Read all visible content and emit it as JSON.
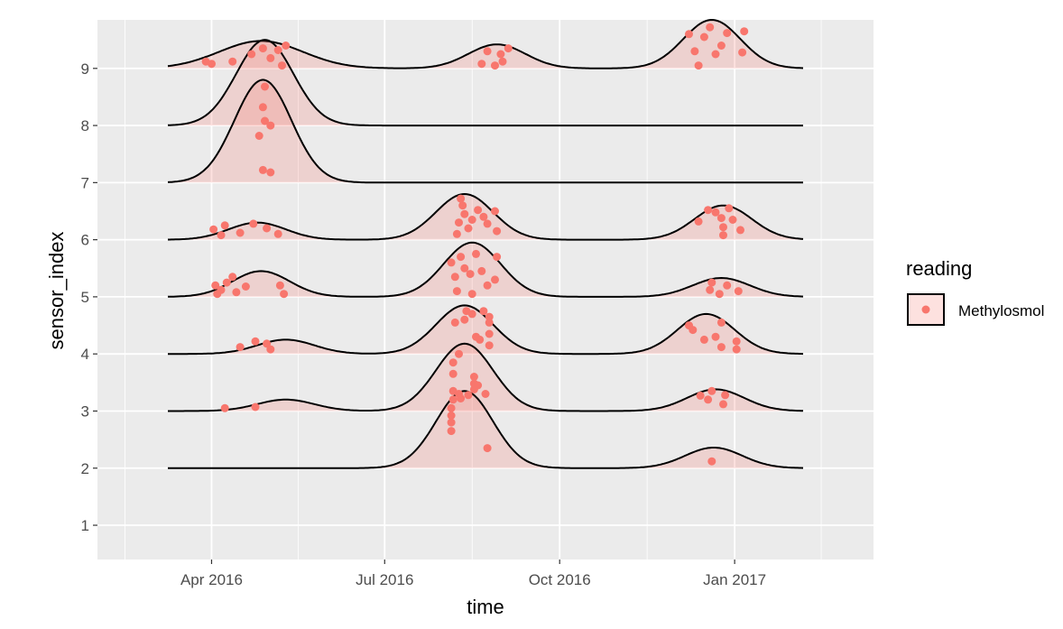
{
  "chart_data": {
    "type": "ridgeline-density-with-jittered-points",
    "xlabel": "time",
    "ylabel": "sensor_index",
    "x_ticks": [
      "Apr 2016",
      "Jul 2016",
      "Oct 2016",
      "Jan 2017"
    ],
    "x_tick_dates": [
      "2016-04-01",
      "2016-07-01",
      "2016-10-01",
      "2017-01-01"
    ],
    "x_range": [
      "2016-02-01",
      "2017-03-15"
    ],
    "y_ticks": [
      1,
      2,
      3,
      4,
      5,
      6,
      7,
      8,
      9
    ],
    "ylim": [
      0.4,
      9.85
    ],
    "grid": true,
    "legend": {
      "title": "reading",
      "placement": "right",
      "entries": [
        "Methylosmol"
      ]
    },
    "colors": {
      "fill": "#f8766d",
      "line": "#000000",
      "panel": "#ebebeb",
      "grid": "#ffffff"
    },
    "ridges": [
      {
        "sensor_index": 2,
        "bumps": [
          {
            "date": "2016-08-12",
            "height": 1.35,
            "sd_days": 15
          },
          {
            "date": "2016-12-21",
            "height": 0.36,
            "sd_days": 15
          }
        ],
        "points": [
          {
            "date": "2016-08-05",
            "y": 2.65
          },
          {
            "date": "2016-08-05",
            "y": 2.8
          },
          {
            "date": "2016-08-05",
            "y": 2.92
          },
          {
            "date": "2016-08-05",
            "y": 3.05
          },
          {
            "date": "2016-08-06",
            "y": 3.2
          },
          {
            "date": "2016-08-09",
            "y": 3.3
          },
          {
            "date": "2016-08-24",
            "y": 2.35
          },
          {
            "date": "2016-12-20",
            "y": 2.12
          }
        ]
      },
      {
        "sensor_index": 3,
        "bumps": [
          {
            "date": "2016-05-10",
            "height": 0.2,
            "sd_days": 15
          },
          {
            "date": "2016-08-12",
            "height": 1.18,
            "sd_days": 15
          },
          {
            "date": "2016-12-22",
            "height": 0.38,
            "sd_days": 15
          }
        ],
        "points": [
          {
            "date": "2016-04-08",
            "y": 3.05
          },
          {
            "date": "2016-04-24",
            "y": 3.07
          },
          {
            "date": "2016-08-06",
            "y": 3.35
          },
          {
            "date": "2016-08-06",
            "y": 3.65
          },
          {
            "date": "2016-08-06",
            "y": 3.85
          },
          {
            "date": "2016-08-09",
            "y": 4.0
          },
          {
            "date": "2016-08-10",
            "y": 3.22
          },
          {
            "date": "2016-08-14",
            "y": 3.28
          },
          {
            "date": "2016-08-17",
            "y": 3.6
          },
          {
            "date": "2016-08-17",
            "y": 3.48
          },
          {
            "date": "2016-08-17",
            "y": 3.38
          },
          {
            "date": "2016-08-19",
            "y": 3.45
          },
          {
            "date": "2016-08-23",
            "y": 3.3
          },
          {
            "date": "2016-12-14",
            "y": 3.27
          },
          {
            "date": "2016-12-18",
            "y": 3.2
          },
          {
            "date": "2016-12-20",
            "y": 3.35
          },
          {
            "date": "2016-12-26",
            "y": 3.12
          },
          {
            "date": "2016-12-27",
            "y": 3.28
          }
        ]
      },
      {
        "sensor_index": 4,
        "bumps": [
          {
            "date": "2016-05-10",
            "height": 0.25,
            "sd_days": 15
          },
          {
            "date": "2016-08-12",
            "height": 0.85,
            "sd_days": 15
          },
          {
            "date": "2016-12-17",
            "height": 0.7,
            "sd_days": 15
          }
        ],
        "points": [
          {
            "date": "2016-04-16",
            "y": 4.12
          },
          {
            "date": "2016-04-24",
            "y": 4.22
          },
          {
            "date": "2016-04-30",
            "y": 4.18
          },
          {
            "date": "2016-05-02",
            "y": 4.08
          },
          {
            "date": "2016-08-07",
            "y": 4.55
          },
          {
            "date": "2016-08-12",
            "y": 4.6
          },
          {
            "date": "2016-08-13",
            "y": 4.75
          },
          {
            "date": "2016-08-16",
            "y": 4.7
          },
          {
            "date": "2016-08-18",
            "y": 4.3
          },
          {
            "date": "2016-08-20",
            "y": 4.25
          },
          {
            "date": "2016-08-22",
            "y": 4.75
          },
          {
            "date": "2016-08-25",
            "y": 4.65
          },
          {
            "date": "2016-08-25",
            "y": 4.55
          },
          {
            "date": "2016-08-25",
            "y": 4.35
          },
          {
            "date": "2016-08-25",
            "y": 4.15
          },
          {
            "date": "2016-12-08",
            "y": 4.5
          },
          {
            "date": "2016-12-10",
            "y": 4.42
          },
          {
            "date": "2016-12-16",
            "y": 4.25
          },
          {
            "date": "2016-12-22",
            "y": 4.3
          },
          {
            "date": "2016-12-25",
            "y": 4.55
          },
          {
            "date": "2016-12-25",
            "y": 4.12
          },
          {
            "date": "2017-01-02",
            "y": 4.22
          },
          {
            "date": "2017-01-02",
            "y": 4.08
          }
        ]
      },
      {
        "sensor_index": 5,
        "bumps": [
          {
            "date": "2016-04-27",
            "height": 0.45,
            "sd_days": 15
          },
          {
            "date": "2016-08-16",
            "height": 0.95,
            "sd_days": 15
          },
          {
            "date": "2016-12-25",
            "height": 0.33,
            "sd_days": 15
          }
        ],
        "points": [
          {
            "date": "2016-04-03",
            "y": 5.2
          },
          {
            "date": "2016-04-04",
            "y": 5.05
          },
          {
            "date": "2016-04-06",
            "y": 5.12
          },
          {
            "date": "2016-04-09",
            "y": 5.25
          },
          {
            "date": "2016-04-12",
            "y": 5.35
          },
          {
            "date": "2016-04-14",
            "y": 5.08
          },
          {
            "date": "2016-04-19",
            "y": 5.18
          },
          {
            "date": "2016-05-07",
            "y": 5.2
          },
          {
            "date": "2016-05-09",
            "y": 5.05
          },
          {
            "date": "2016-08-05",
            "y": 5.6
          },
          {
            "date": "2016-08-07",
            "y": 5.35
          },
          {
            "date": "2016-08-08",
            "y": 5.1
          },
          {
            "date": "2016-08-10",
            "y": 5.7
          },
          {
            "date": "2016-08-12",
            "y": 5.5
          },
          {
            "date": "2016-08-15",
            "y": 5.4
          },
          {
            "date": "2016-08-16",
            "y": 5.05
          },
          {
            "date": "2016-08-18",
            "y": 5.75
          },
          {
            "date": "2016-08-21",
            "y": 5.45
          },
          {
            "date": "2016-08-24",
            "y": 5.2
          },
          {
            "date": "2016-08-28",
            "y": 5.3
          },
          {
            "date": "2016-08-29",
            "y": 5.7
          },
          {
            "date": "2016-12-19",
            "y": 5.12
          },
          {
            "date": "2016-12-20",
            "y": 5.25
          },
          {
            "date": "2016-12-24",
            "y": 5.05
          },
          {
            "date": "2016-12-28",
            "y": 5.2
          },
          {
            "date": "2017-01-03",
            "y": 5.1
          }
        ]
      },
      {
        "sensor_index": 6,
        "bumps": [
          {
            "date": "2016-04-25",
            "height": 0.3,
            "sd_days": 15
          },
          {
            "date": "2016-08-12",
            "height": 0.8,
            "sd_days": 15
          },
          {
            "date": "2016-12-26",
            "height": 0.6,
            "sd_days": 15
          }
        ],
        "points": [
          {
            "date": "2016-04-02",
            "y": 6.18
          },
          {
            "date": "2016-04-06",
            "y": 6.08
          },
          {
            "date": "2016-04-08",
            "y": 6.25
          },
          {
            "date": "2016-04-16",
            "y": 6.12
          },
          {
            "date": "2016-04-23",
            "y": 6.28
          },
          {
            "date": "2016-04-30",
            "y": 6.2
          },
          {
            "date": "2016-05-06",
            "y": 6.1
          },
          {
            "date": "2016-08-08",
            "y": 6.1
          },
          {
            "date": "2016-08-09",
            "y": 6.3
          },
          {
            "date": "2016-08-10",
            "y": 6.72
          },
          {
            "date": "2016-08-11",
            "y": 6.6
          },
          {
            "date": "2016-08-12",
            "y": 6.45
          },
          {
            "date": "2016-08-14",
            "y": 6.2
          },
          {
            "date": "2016-08-16",
            "y": 6.35
          },
          {
            "date": "2016-08-19",
            "y": 6.52
          },
          {
            "date": "2016-08-22",
            "y": 6.4
          },
          {
            "date": "2016-08-24",
            "y": 6.28
          },
          {
            "date": "2016-08-28",
            "y": 6.5
          },
          {
            "date": "2016-08-29",
            "y": 6.15
          },
          {
            "date": "2016-12-13",
            "y": 6.32
          },
          {
            "date": "2016-12-18",
            "y": 6.52
          },
          {
            "date": "2016-12-22",
            "y": 6.48
          },
          {
            "date": "2016-12-25",
            "y": 6.38
          },
          {
            "date": "2016-12-26",
            "y": 6.22
          },
          {
            "date": "2016-12-26",
            "y": 6.08
          },
          {
            "date": "2016-12-29",
            "y": 6.55
          },
          {
            "date": "2016-12-31",
            "y": 6.35
          },
          {
            "date": "2017-01-04",
            "y": 6.17
          }
        ]
      },
      {
        "sensor_index": 7,
        "bumps": [
          {
            "date": "2016-04-28",
            "height": 1.8,
            "sd_days": 15
          }
        ],
        "points": [
          {
            "date": "2016-04-26",
            "y": 7.82
          },
          {
            "date": "2016-04-28",
            "y": 7.22
          },
          {
            "date": "2016-05-02",
            "y": 7.18
          }
        ]
      },
      {
        "sensor_index": 8,
        "bumps": [
          {
            "date": "2016-04-29",
            "height": 1.5,
            "sd_days": 15
          }
        ],
        "points": [
          {
            "date": "2016-04-28",
            "y": 8.32
          },
          {
            "date": "2016-04-29",
            "y": 8.08
          },
          {
            "date": "2016-04-29",
            "y": 8.68
          },
          {
            "date": "2016-05-02",
            "y": 8.0
          }
        ]
      },
      {
        "sensor_index": 9,
        "bumps": [
          {
            "date": "2016-04-27",
            "height": 0.48,
            "sd_days": 22
          },
          {
            "date": "2016-08-29",
            "height": 0.42,
            "sd_days": 15
          },
          {
            "date": "2016-12-20",
            "height": 0.85,
            "sd_days": 15
          }
        ],
        "points": [
          {
            "date": "2016-03-29",
            "y": 9.12
          },
          {
            "date": "2016-04-01",
            "y": 9.08
          },
          {
            "date": "2016-04-12",
            "y": 9.12
          },
          {
            "date": "2016-04-22",
            "y": 9.25
          },
          {
            "date": "2016-04-28",
            "y": 9.35
          },
          {
            "date": "2016-05-02",
            "y": 9.18
          },
          {
            "date": "2016-05-06",
            "y": 9.32
          },
          {
            "date": "2016-05-08",
            "y": 9.05
          },
          {
            "date": "2016-05-10",
            "y": 9.4
          },
          {
            "date": "2016-08-21",
            "y": 9.08
          },
          {
            "date": "2016-08-24",
            "y": 9.3
          },
          {
            "date": "2016-08-28",
            "y": 9.05
          },
          {
            "date": "2016-08-31",
            "y": 9.25
          },
          {
            "date": "2016-09-01",
            "y": 9.12
          },
          {
            "date": "2016-09-04",
            "y": 9.35
          },
          {
            "date": "2016-12-08",
            "y": 9.6
          },
          {
            "date": "2016-12-11",
            "y": 9.3
          },
          {
            "date": "2016-12-13",
            "y": 9.05
          },
          {
            "date": "2016-12-16",
            "y": 9.55
          },
          {
            "date": "2016-12-19",
            "y": 9.72
          },
          {
            "date": "2016-12-22",
            "y": 9.25
          },
          {
            "date": "2016-12-25",
            "y": 9.4
          },
          {
            "date": "2016-12-28",
            "y": 9.62
          },
          {
            "date": "2017-01-05",
            "y": 9.28
          },
          {
            "date": "2017-01-06",
            "y": 9.65
          }
        ]
      }
    ]
  }
}
